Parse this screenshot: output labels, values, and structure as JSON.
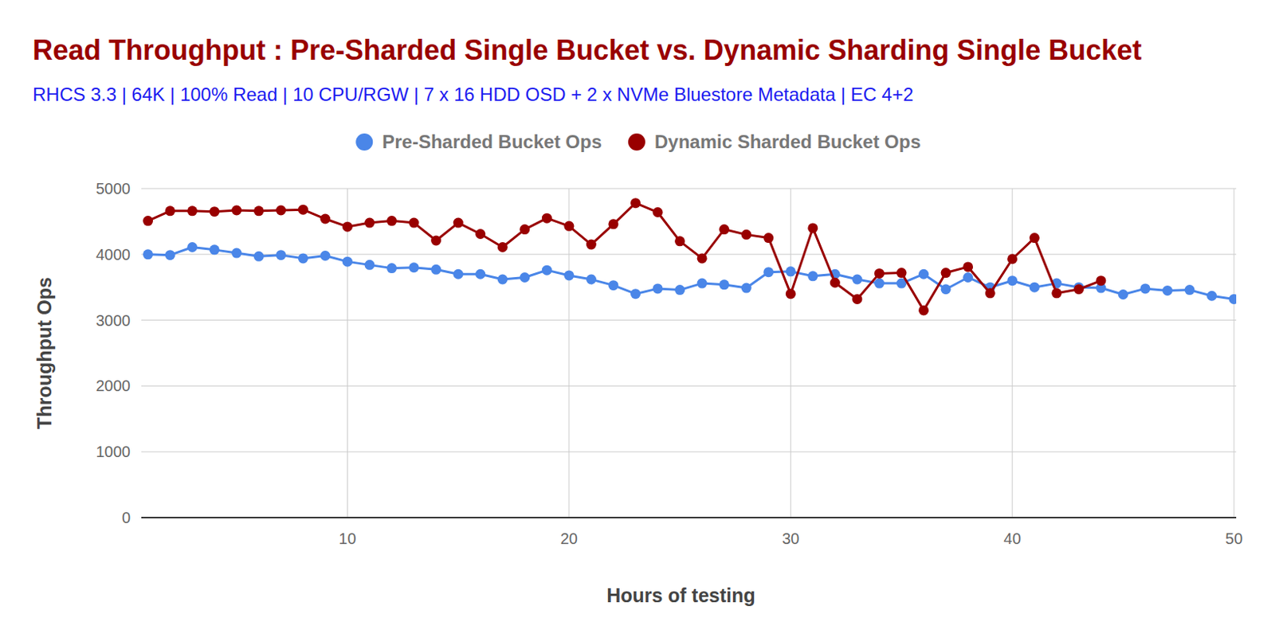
{
  "chart_data": {
    "type": "line",
    "title": "Read Throughput : Pre-Sharded Single Bucket vs. Dynamic Sharding Single Bucket",
    "subtitle": "RHCS 3.3 | 64K | 100% Read | 10 CPU/RGW | 7 x 16 HDD OSD + 2 x NVMe Bluestore Metadata | EC 4+2",
    "x_label": "Hours of testing",
    "y_label": "Throughput Ops",
    "x": [
      1,
      2,
      3,
      4,
      5,
      6,
      7,
      8,
      9,
      10,
      11,
      12,
      13,
      14,
      15,
      16,
      17,
      18,
      19,
      20,
      21,
      22,
      23,
      24,
      25,
      26,
      27,
      28,
      29,
      30,
      31,
      32,
      33,
      34,
      35,
      36,
      37,
      38,
      39,
      40,
      41,
      42,
      43,
      44,
      45,
      46,
      47,
      48,
      49,
      50
    ],
    "series": [
      {
        "name": "Pre-Sharded Bucket Ops",
        "color": "#4a86e8",
        "marker": "circle",
        "line_style": "solid",
        "values": [
          4000,
          3990,
          4110,
          4070,
          4020,
          3970,
          3990,
          3940,
          3980,
          3890,
          3840,
          3790,
          3800,
          3770,
          3700,
          3700,
          3620,
          3650,
          3760,
          3680,
          3620,
          3530,
          3400,
          3480,
          3460,
          3560,
          3540,
          3490,
          3730,
          3740,
          3670,
          3700,
          3620,
          3560,
          3560,
          3700,
          3470,
          3650,
          3500,
          3600,
          3500,
          3560,
          3500,
          3490,
          3390,
          3480,
          3450,
          3460,
          3370,
          3320
        ]
      },
      {
        "name": "Dynamic Sharded Bucket Ops",
        "color": "#990000",
        "marker": "circle",
        "line_style": "solid",
        "values": [
          4510,
          4660,
          4660,
          4650,
          4670,
          4660,
          4670,
          4680,
          4540,
          4420,
          4480,
          4510,
          4480,
          4210,
          4480,
          4310,
          4110,
          4380,
          4550,
          4430,
          4150,
          4460,
          4780,
          4640,
          4200,
          3940,
          4380,
          4300,
          4250,
          3400,
          4400,
          3570,
          3320,
          3710,
          3720,
          3150,
          3720,
          3810,
          3410,
          3930,
          4250,
          3410,
          3470,
          3600,
          null,
          null,
          null,
          null,
          null,
          null
        ]
      }
    ],
    "xlim": [
      0.7,
      50.1
    ],
    "xticks": [
      10,
      20,
      30,
      40,
      50
    ],
    "ylim": [
      0,
      5000
    ],
    "yticks": [
      0,
      1000,
      2000,
      3000,
      4000,
      5000
    ],
    "grid": true,
    "legend": "top"
  }
}
